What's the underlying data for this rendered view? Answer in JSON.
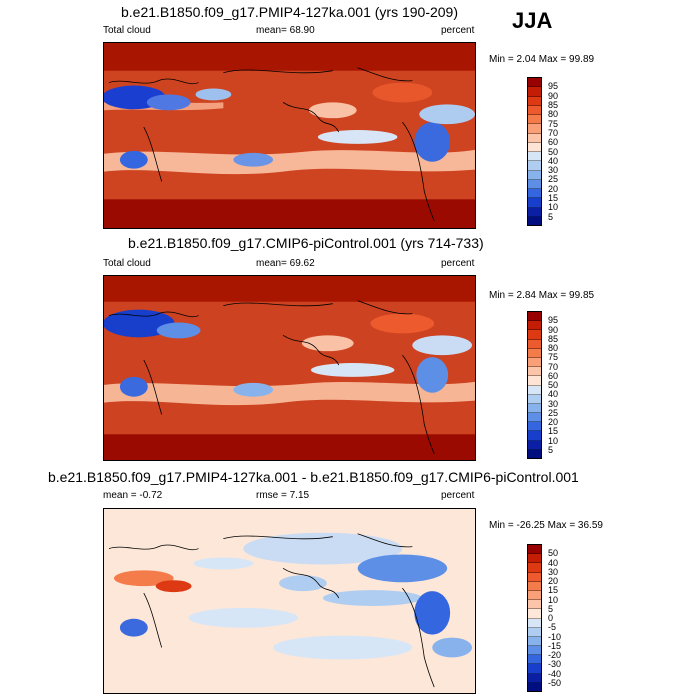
{
  "season": "JJA",
  "panels": [
    {
      "title": "b.e21.B1850.f09_g17.PMIP4-127ka.001 (yrs 190-209)",
      "left_label": "Total cloud",
      "mid_label": "mean=  68.90",
      "units": "percent",
      "minmax": "Min =   2.04 Max =  99.89",
      "ticks": [
        "95",
        "90",
        "85",
        "80",
        "75",
        "70",
        "60",
        "50",
        "40",
        "30",
        "25",
        "20",
        "15",
        "10",
        "5"
      ],
      "colors": [
        "#990000",
        "#c41d06",
        "#dd3a14",
        "#ec5a2d",
        "#f47c4a",
        "#f9a078",
        "#fcc4a8",
        "#fde4d4",
        "#d7e6f7",
        "#afcdf1",
        "#87b2ec",
        "#5d8fe6",
        "#3466df",
        "#173fcb",
        "#0a1fa3",
        "#000e80"
      ]
    },
    {
      "title": "b.e21.B1850.f09_g17.CMIP6-piControl.001 (yrs 714-733)",
      "left_label": "Total cloud",
      "mid_label": "mean=  69.62",
      "units": "percent",
      "minmax": "Min =   2.84 Max =  99.85",
      "ticks": [
        "95",
        "90",
        "85",
        "80",
        "75",
        "70",
        "60",
        "50",
        "40",
        "30",
        "25",
        "20",
        "15",
        "10",
        "5"
      ],
      "colors": [
        "#990000",
        "#c41d06",
        "#dd3a14",
        "#ec5a2d",
        "#f47c4a",
        "#f9a078",
        "#fcc4a8",
        "#fde4d4",
        "#d7e6f7",
        "#afcdf1",
        "#87b2ec",
        "#5d8fe6",
        "#3466df",
        "#173fcb",
        "#0a1fa3",
        "#000e80"
      ]
    },
    {
      "title": "b.e21.B1850.f09_g17.PMIP4-127ka.001 - b.e21.B1850.f09_g17.CMIP6-piControl.001",
      "left_label": "mean =  -0.72",
      "mid_label": "rmse =   7.15",
      "units": "percent",
      "minmax": "Min = -26.25 Max =  36.59",
      "ticks": [
        "50",
        "40",
        "30",
        "20",
        "15",
        "10",
        "5",
        "0",
        "-5",
        "-10",
        "-15",
        "-20",
        "-30",
        "-40",
        "-50"
      ],
      "colors": [
        "#990000",
        "#c41d06",
        "#dd3a14",
        "#ec5a2d",
        "#f47c4a",
        "#f9a078",
        "#fcc4a8",
        "#fde7d8",
        "#d7e6f7",
        "#afcdf1",
        "#87b2ec",
        "#5d8fe6",
        "#3466df",
        "#173fcb",
        "#0a1fa3",
        "#000e80"
      ]
    }
  ]
}
